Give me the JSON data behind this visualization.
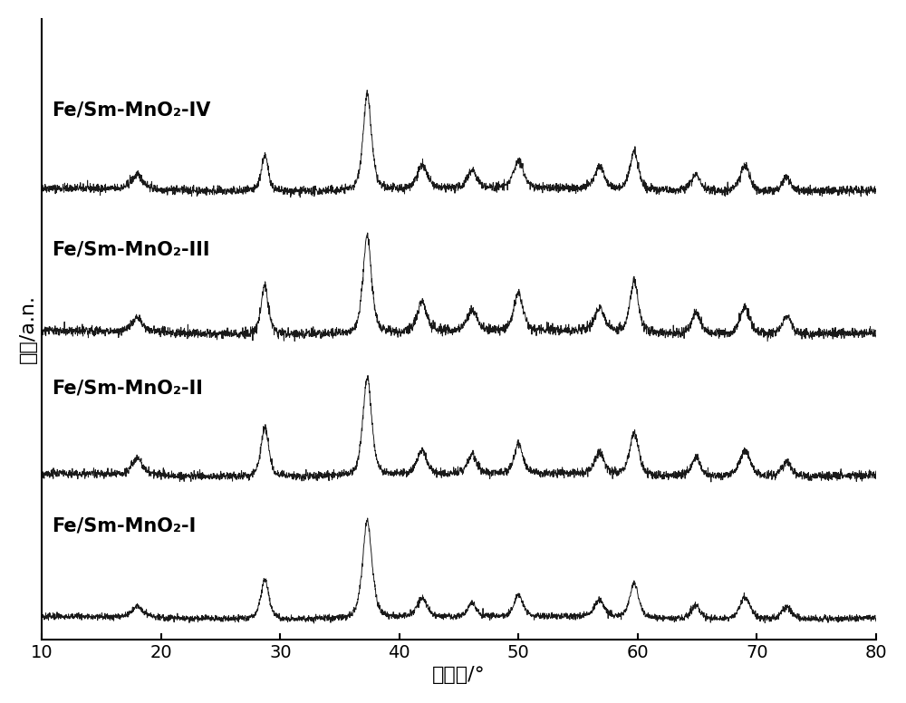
{
  "x_min": 10,
  "x_max": 80,
  "x_ticks": [
    10,
    20,
    30,
    40,
    50,
    60,
    70,
    80
  ],
  "xlabel": "衍射角/°",
  "ylabel": "强度/a.n.",
  "labels": [
    "Fe/Sm-MnO₂-IV",
    "Fe/Sm-MnO₂-III",
    "Fe/Sm-MnO₂-II",
    "Fe/Sm-MnO₂-I"
  ],
  "offsets": [
    3.0,
    2.0,
    1.0,
    0.0
  ],
  "line_color": "#000000",
  "background_color": "#ffffff",
  "label_fontsize": 15,
  "axis_fontsize": 16,
  "tick_fontsize": 14
}
